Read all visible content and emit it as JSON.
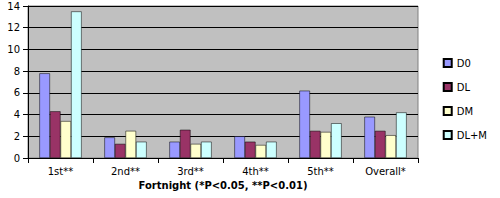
{
  "chart_data": {
    "type": "bar",
    "x_label": "Fortnight (*P<0.05, **P<0.01)",
    "categories": [
      "1st**",
      "2nd**",
      "3rd**",
      "4th**",
      "5th**",
      "Overall*"
    ],
    "series": [
      {
        "name": "D0",
        "color": "#9999ff",
        "values": [
          7.8,
          1.9,
          1.5,
          2.0,
          6.2,
          3.8
        ]
      },
      {
        "name": "DL",
        "color": "#993366",
        "values": [
          4.3,
          1.3,
          2.6,
          1.5,
          2.5,
          2.5
        ]
      },
      {
        "name": "DM",
        "color": "#ffffcc",
        "values": [
          3.4,
          2.5,
          1.3,
          1.2,
          2.4,
          2.1
        ]
      },
      {
        "name": "DL+M",
        "color": "#ccffff",
        "values": [
          13.5,
          1.5,
          1.5,
          1.5,
          3.2,
          4.2
        ]
      }
    ],
    "ylim": [
      0,
      14
    ],
    "yticks": [
      0,
      2,
      4,
      6,
      8,
      10,
      12,
      14
    ],
    "grid": true,
    "legend": "right"
  }
}
